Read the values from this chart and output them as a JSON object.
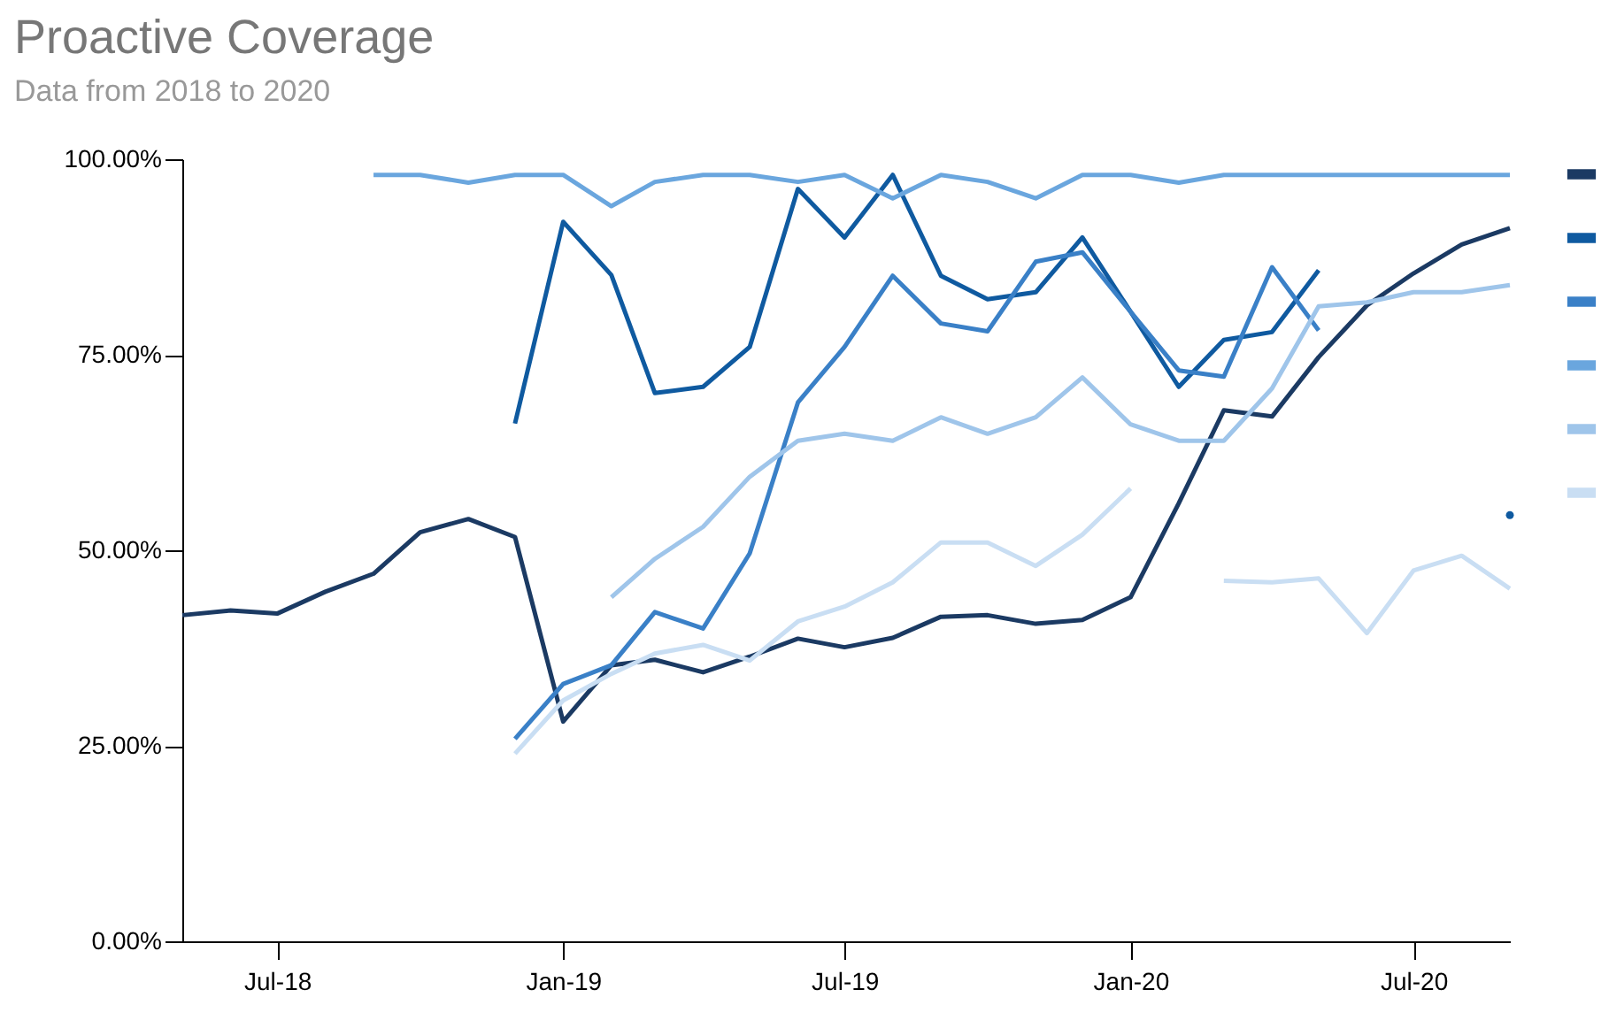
{
  "chart_data": {
    "type": "line",
    "title": "Proactive Coverage",
    "subtitle": "Data from 2018 to 2020",
    "x": [
      "2018-05",
      "2018-06",
      "2018-07",
      "2018-08",
      "2018-09",
      "2018-10",
      "2018-11",
      "2018-12",
      "2019-01",
      "2019-02",
      "2019-03",
      "2019-04",
      "2019-05",
      "2019-06",
      "2019-07",
      "2019-08",
      "2019-09",
      "2019-10",
      "2019-11",
      "2019-12",
      "2020-01",
      "2020-02",
      "2020-03",
      "2020-04",
      "2020-05",
      "2020-06",
      "2020-07",
      "2020-08",
      "2020-09"
    ],
    "series": [
      {
        "color": "#1b3a63",
        "values": [
          41.7,
          42.3,
          41.9,
          44.7,
          47.0,
          52.3,
          54.0,
          51.7,
          28.1,
          35.3,
          36.0,
          34.4,
          36.4,
          38.7,
          37.6,
          38.8,
          41.5,
          41.7,
          40.6,
          41.1,
          44.0,
          56.0,
          67.9,
          67.1,
          74.7,
          81.3,
          85.4,
          89.1,
          91.2
        ]
      },
      {
        "color": "#0f5aa0",
        "values": [
          null,
          null,
          null,
          null,
          null,
          null,
          null,
          66.2,
          92.0,
          85.2,
          70.1,
          70.9,
          76.0,
          96.2,
          90.0,
          98.0,
          85.1,
          82.1,
          83.0,
          90.0,
          80.5,
          70.9,
          76.9,
          77.9,
          85.8,
          null,
          null,
          null,
          54.5
        ]
      },
      {
        "color": "#3a80c7",
        "values": [
          null,
          null,
          null,
          null,
          null,
          null,
          null,
          25.9,
          32.9,
          35.3,
          42.1,
          40.0,
          49.6,
          68.9,
          76.0,
          85.1,
          79.0,
          78.0,
          86.9,
          88.1,
          80.5,
          73.0,
          72.2,
          86.2,
          78.1,
          null,
          null,
          null,
          null
        ]
      },
      {
        "color": "#6aa6de",
        "values": [
          null,
          null,
          null,
          null,
          98.0,
          98.0,
          97.0,
          98.0,
          98.0,
          94.0,
          97.1,
          98.0,
          98.0,
          97.1,
          98.0,
          95.0,
          98.0,
          97.1,
          95.0,
          98.0,
          98.0,
          97.0,
          98.0,
          98.0,
          98.0,
          98.0,
          98.0,
          98.0,
          98.0
        ]
      },
      {
        "color": "#9fc5ea",
        "values": [
          null,
          null,
          null,
          null,
          null,
          null,
          null,
          null,
          null,
          44.0,
          48.9,
          53.0,
          59.4,
          64.0,
          64.9,
          64.0,
          67.0,
          64.9,
          67.0,
          72.1,
          66.1,
          64.0,
          64.0,
          70.7,
          81.2,
          81.7,
          83.0,
          83.0,
          83.9
        ]
      },
      {
        "color": "#c9def3",
        "values": [
          null,
          null,
          null,
          null,
          null,
          null,
          null,
          24.0,
          30.8,
          34.2,
          36.8,
          37.9,
          35.9,
          40.9,
          42.8,
          45.9,
          51.0,
          51.0,
          48.0,
          52.0,
          57.9,
          null,
          46.1,
          45.9,
          46.4,
          39.4,
          47.4,
          49.3,
          45.1
        ]
      }
    ],
    "xlim": [
      "2018-05",
      "2020-09"
    ],
    "xticks": [
      {
        "value": "2018-07",
        "label": "Jul-18"
      },
      {
        "value": "2019-01",
        "label": "Jan-19"
      },
      {
        "value": "2019-07",
        "label": "Jul-19"
      },
      {
        "value": "2020-01",
        "label": "Jan-20"
      },
      {
        "value": "2020-07",
        "label": "Jul-20"
      }
    ],
    "ylim": [
      0,
      100
    ],
    "yticks": [
      {
        "value": 0,
        "label": "0.00%"
      },
      {
        "value": 25,
        "label": "25.00%"
      },
      {
        "value": 50,
        "label": "50.00%"
      },
      {
        "value": 75,
        "label": "75.00%"
      },
      {
        "value": 100,
        "label": "100.00%"
      }
    ]
  }
}
